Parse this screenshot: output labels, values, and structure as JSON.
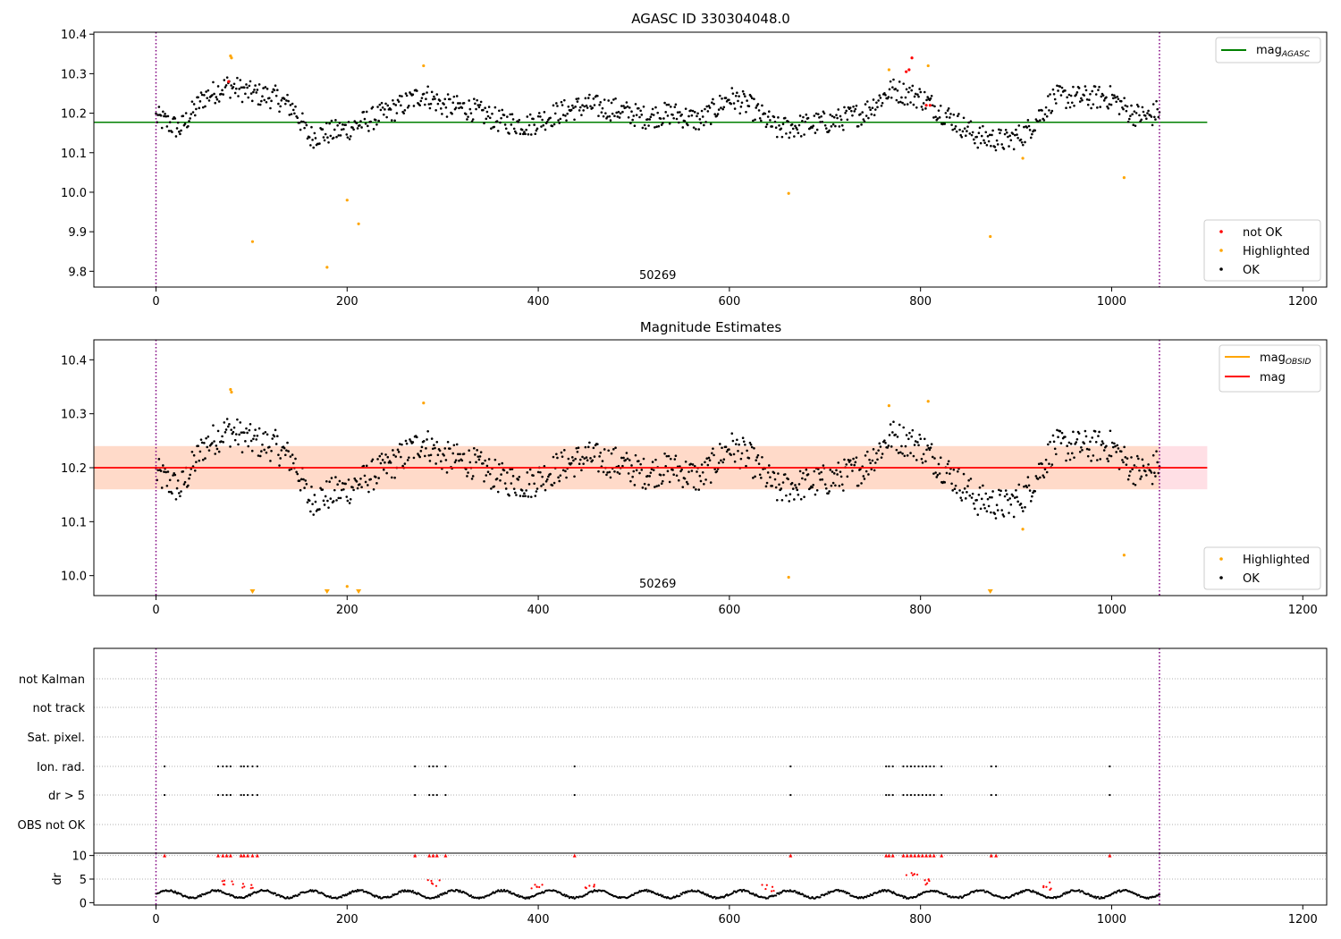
{
  "chart_data": [
    {
      "type": "scatter",
      "title": "AGASC ID 330304048.0",
      "xlabel": "",
      "ylabel": "",
      "xlim": [
        -65,
        1225
      ],
      "ylim": [
        9.76,
        10.405
      ],
      "xticks": [
        0,
        200,
        400,
        600,
        800,
        1000,
        1200
      ],
      "yticks": [
        9.8,
        9.9,
        10.0,
        10.1,
        10.2,
        10.3,
        10.4
      ],
      "yticks_labels": [
        "9.8",
        "9.9",
        "10.0",
        "10.1",
        "10.2",
        "10.3",
        "10.4"
      ],
      "grid": false,
      "annotation": "50269",
      "annotation_x": 525,
      "vlines": [
        0,
        1050
      ],
      "hline": {
        "y": 10.177,
        "x_end": 1100,
        "color": "#008000",
        "label": "mag",
        "sub": "AGASC"
      },
      "legend_top": [
        {
          "label": "mag",
          "sub": "AGASC",
          "color": "#008000",
          "kind": "line"
        }
      ],
      "legend_bottom": [
        {
          "label": "not OK",
          "color": "#ff0000",
          "kind": "dot"
        },
        {
          "label": "Highlighted",
          "color": "#ffa500",
          "kind": "dot"
        },
        {
          "label": "OK",
          "color": "#000000",
          "kind": "dot"
        }
      ],
      "series": [
        {
          "name": "OK",
          "color": "#000000",
          "x_range": [
            0,
            1050
          ],
          "segments": [
            [
              0,
              10.19
            ],
            [
              25,
              10.16
            ],
            [
              50,
              10.24
            ],
            [
              75,
              10.27
            ],
            [
              100,
              10.25
            ],
            [
              125,
              10.24
            ],
            [
              145,
              10.21
            ],
            [
              160,
              10.14
            ],
            [
              180,
              10.15
            ],
            [
              200,
              10.16
            ],
            [
              220,
              10.18
            ],
            [
              250,
              10.21
            ],
            [
              280,
              10.25
            ],
            [
              300,
              10.22
            ],
            [
              330,
              10.21
            ],
            [
              360,
              10.18
            ],
            [
              390,
              10.17
            ],
            [
              420,
              10.2
            ],
            [
              450,
              10.22
            ],
            [
              480,
              10.21
            ],
            [
              510,
              10.19
            ],
            [
              540,
              10.2
            ],
            [
              570,
              10.18
            ],
            [
              600,
              10.24
            ],
            [
              620,
              10.22
            ],
            [
              650,
              10.16
            ],
            [
              680,
              10.17
            ],
            [
              710,
              10.18
            ],
            [
              740,
              10.2
            ],
            [
              770,
              10.26
            ],
            [
              800,
              10.24
            ],
            [
              830,
              10.19
            ],
            [
              860,
              10.14
            ],
            [
              890,
              10.13
            ],
            [
              910,
              10.15
            ],
            [
              940,
              10.24
            ],
            [
              970,
              10.24
            ],
            [
              1000,
              10.24
            ],
            [
              1020,
              10.2
            ],
            [
              1040,
              10.19
            ],
            [
              1050,
              10.21
            ]
          ]
        },
        {
          "name": "Highlighted",
          "color": "#ffa500",
          "points": [
            [
              78,
              10.345
            ],
            [
              79,
              10.34
            ],
            [
              101,
              9.875
            ],
            [
              179,
              9.81
            ],
            [
              200,
              9.98
            ],
            [
              212,
              9.92
            ],
            [
              280,
              10.32
            ],
            [
              662,
              9.997
            ],
            [
              767,
              10.31
            ],
            [
              808,
              10.32
            ],
            [
              873,
              9.888
            ],
            [
              907,
              10.086
            ],
            [
              1013,
              10.037
            ]
          ]
        },
        {
          "name": "not OK",
          "color": "#ff0000",
          "points": [
            [
              76,
              10.28
            ],
            [
              785,
              10.305
            ],
            [
              788,
              10.31
            ],
            [
              791,
              10.34
            ],
            [
              806,
              10.22
            ],
            [
              810,
              10.22
            ]
          ]
        }
      ]
    },
    {
      "type": "scatter",
      "title": "Magnitude Estimates",
      "xlabel": "",
      "ylabel": "",
      "xlim": [
        -65,
        1225
      ],
      "ylim": [
        9.963,
        10.437
      ],
      "xticks": [
        0,
        200,
        400,
        600,
        800,
        1000,
        1200
      ],
      "yticks": [
        10.0,
        10.1,
        10.2,
        10.3,
        10.4
      ],
      "yticks_labels": [
        "10.0",
        "10.1",
        "10.2",
        "10.3",
        "10.4"
      ],
      "grid": false,
      "annotation": "50269",
      "annotation_x": 525,
      "vlines": [
        0,
        1050
      ],
      "band_outer": {
        "y0": 10.16,
        "y1": 10.24,
        "x_end": 1100,
        "color": "#ffc0cb"
      },
      "band_inner": {
        "y0": 10.16,
        "y1": 10.24,
        "x_end": 1050,
        "color": "#ffd9c4"
      },
      "hline": {
        "y": 10.2,
        "x_end": 1100,
        "color": "#ff0000"
      },
      "hline_obsid": {
        "y": 10.2,
        "x_end": 1050,
        "color": "#ffa500"
      },
      "legend_top": [
        {
          "label": "mag",
          "sub": "OBSID",
          "color": "#ffa500",
          "kind": "line"
        },
        {
          "label": "mag",
          "sub": "",
          "color": "#ff0000",
          "kind": "line"
        }
      ],
      "legend_bottom": [
        {
          "label": "Highlighted",
          "color": "#ffa500",
          "kind": "dot"
        },
        {
          "label": "OK",
          "color": "#000000",
          "kind": "dot"
        }
      ],
      "lower_limits": [
        101,
        179,
        212,
        873
      ],
      "series_highlighted": [
        [
          78,
          10.345
        ],
        [
          79,
          10.34
        ],
        [
          200,
          9.98
        ],
        [
          280,
          10.32
        ],
        [
          662,
          9.997
        ],
        [
          767,
          10.315
        ],
        [
          808,
          10.323
        ],
        [
          907,
          10.086
        ],
        [
          1013,
          10.038
        ]
      ]
    },
    {
      "type": "scatter",
      "title": "",
      "xlabel": "",
      "ylabel": "dr",
      "xlim": [
        -65,
        1225
      ],
      "xticks": [
        0,
        200,
        400,
        600,
        800,
        1000,
        1200
      ],
      "flag_rows": [
        "not Kalman",
        "not track",
        "Sat. pixel.",
        "Ion. rad.",
        "dr > 5",
        "OBS not OK"
      ],
      "flag_points": {
        "Ion. rad.": [
          9,
          65,
          70,
          74,
          78,
          89,
          92,
          96,
          101,
          106,
          271,
          286,
          290,
          294,
          303,
          438,
          664,
          764,
          767,
          771,
          782,
          786,
          790,
          794,
          798,
          802,
          806,
          810,
          814,
          822,
          874,
          879,
          998
        ],
        "dr > 5": [
          9,
          65,
          70,
          74,
          78,
          89,
          92,
          96,
          101,
          106,
          271,
          286,
          290,
          294,
          303,
          438,
          664,
          764,
          767,
          771,
          782,
          786,
          790,
          794,
          798,
          802,
          806,
          810,
          814,
          822,
          874,
          879,
          998
        ]
      },
      "dr_yticks": [
        0,
        5,
        10
      ],
      "dr_ylim": [
        -0.5,
        10.5
      ],
      "dr_red_clusters": [
        [
          75,
          4.5
        ],
        [
          96,
          3.8
        ],
        [
          290,
          4.2
        ],
        [
          640,
          3.2
        ],
        [
          790,
          5.5
        ],
        [
          810,
          4.5
        ],
        [
          935,
          3.5
        ],
        [
          400,
          3.1
        ],
        [
          455,
          3.0
        ]
      ]
    }
  ]
}
